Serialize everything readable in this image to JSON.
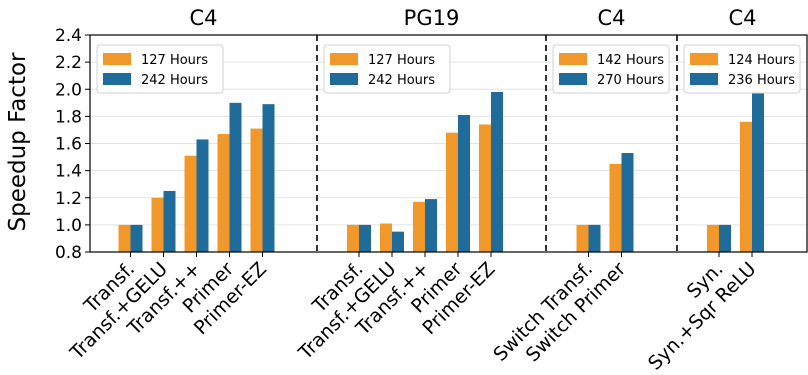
{
  "chart_data": {
    "type": "bar",
    "ylabel": "Speedup Factor",
    "ylim": [
      0.8,
      2.4
    ],
    "yticks": [
      "0.8",
      "1.0",
      "1.2",
      "1.4",
      "1.6",
      "1.8",
      "2.0",
      "2.2",
      "2.4"
    ],
    "grid": true,
    "legend_position": "top-left",
    "colors": {
      "series1": "#f0982a",
      "series2": "#1f6b99",
      "divider": "#333333",
      "grid": "#e3e3e3"
    },
    "panels": [
      {
        "title": "C4",
        "categories": [
          "Transf.",
          "Transf.+GELU",
          "Transf.++",
          "Primer",
          "Primer-EZ"
        ],
        "series": [
          {
            "name": "127 Hours",
            "values": [
              1.0,
              1.2,
              1.51,
              1.67,
              1.71
            ]
          },
          {
            "name": "242 Hours",
            "values": [
              1.0,
              1.25,
              1.63,
              1.9,
              1.89
            ]
          }
        ]
      },
      {
        "title": "PG19",
        "categories": [
          "Transf.",
          "Transf.+GELU",
          "Transf.++",
          "Primer",
          "Primer-EZ"
        ],
        "series": [
          {
            "name": "127 Hours",
            "values": [
              1.0,
              1.01,
              1.17,
              1.68,
              1.74
            ]
          },
          {
            "name": "242 Hours",
            "values": [
              1.0,
              0.95,
              1.19,
              1.81,
              1.98
            ]
          }
        ]
      },
      {
        "title": "C4",
        "categories": [
          "Switch Transf.",
          "Switch Primer"
        ],
        "series": [
          {
            "name": "142 Hours",
            "values": [
              1.0,
              1.45
            ]
          },
          {
            "name": "270 Hours",
            "values": [
              1.0,
              1.53
            ]
          }
        ]
      },
      {
        "title": "C4",
        "categories": [
          "Syn.",
          "Syn.+Sqr ReLU"
        ],
        "series": [
          {
            "name": "124 Hours",
            "values": [
              1.0,
              1.76
            ]
          },
          {
            "name": "236 Hours",
            "values": [
              1.0,
              1.97
            ]
          }
        ]
      }
    ]
  }
}
